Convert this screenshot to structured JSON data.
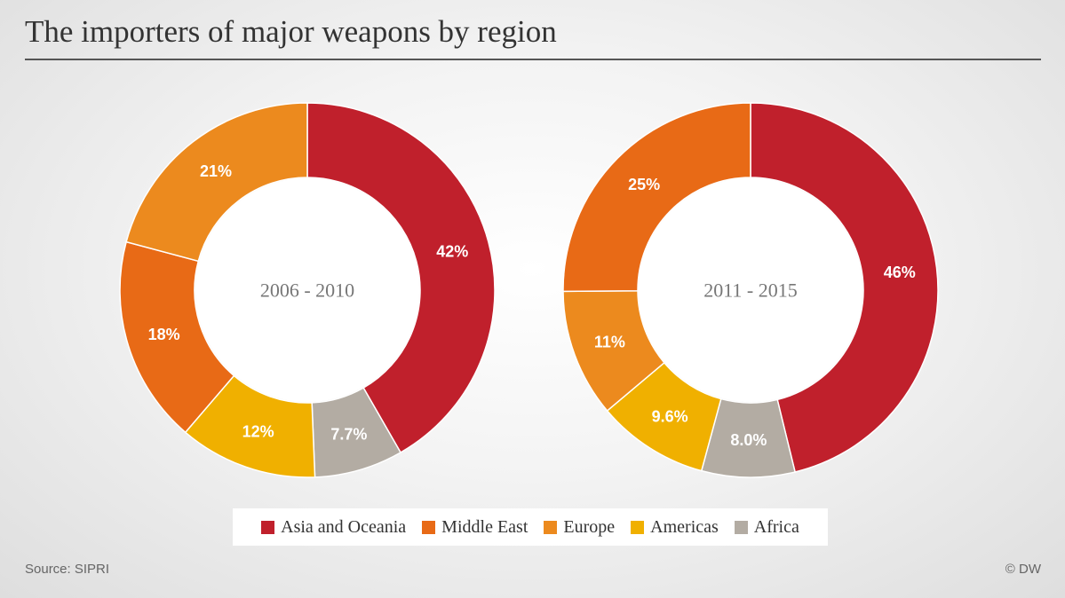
{
  "header": {
    "title": "The importers of major weapons by region"
  },
  "chart_data": [
    {
      "type": "pie",
      "donut": true,
      "center_label": "2006 - 2010",
      "categories": [
        "Asia and Oceania",
        "Africa",
        "Americas",
        "Middle East",
        "Europe"
      ],
      "values": [
        42,
        7.7,
        12,
        18,
        21
      ],
      "value_labels": [
        "42%",
        "7.7%",
        "12%",
        "18%",
        "21%"
      ]
    },
    {
      "type": "pie",
      "donut": true,
      "center_label": "2011 - 2015",
      "categories": [
        "Asia and Oceania",
        "Africa",
        "Americas",
        "Europe",
        "Middle East"
      ],
      "values": [
        46,
        8.0,
        9.6,
        11,
        25
      ],
      "value_labels": [
        "46%",
        "8.0%",
        "9.6%",
        "11%",
        "25%"
      ]
    }
  ],
  "legend": {
    "placement": "bottom-center",
    "items": [
      {
        "label": "Asia and Oceania",
        "color": "#c0202c"
      },
      {
        "label": "Middle East",
        "color": "#e86a16"
      },
      {
        "label": "Europe",
        "color": "#ec8a1e"
      },
      {
        "label": "Americas",
        "color": "#f0b000"
      },
      {
        "label": "Africa",
        "color": "#b3aca3"
      }
    ]
  },
  "colors": {
    "Asia and Oceania": "#c0202c",
    "Middle East": "#e86a16",
    "Europe": "#ec8a1e",
    "Americas": "#f0b000",
    "Africa": "#b3aca3"
  },
  "footer": {
    "source": "Source: SIPRI",
    "credit": "© DW"
  }
}
